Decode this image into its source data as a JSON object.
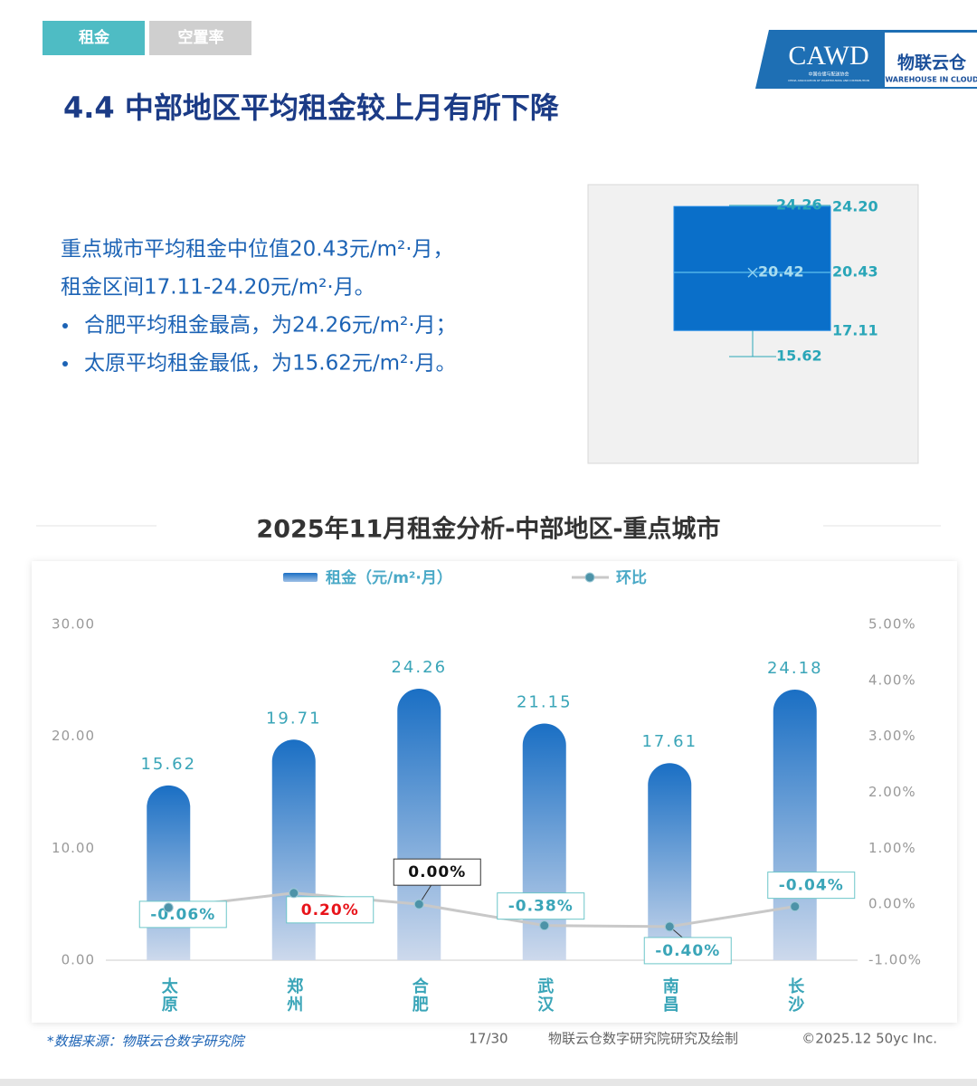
{
  "tabs": [
    "租金",
    "空置率"
  ],
  "logo": {
    "cawd": "CAWD",
    "cawd_sub": "中国仓储与配送协会",
    "cawd_en": "CHINA ASSOCIATION OF WAREHOUSING AND DISTRIBUTION",
    "brand": "物联云仓",
    "brand_en": "WAREHOUSE IN CLOUD"
  },
  "title": "4.4 中部地区平均租金较上月有所下降",
  "summary": [
    "重点城市平均租金中位值20.43元/m²·月，",
    "租金区间17.11-24.20元/m²·月。"
  ],
  "bullets": [
    "合肥平均租金最高，为24.26元/m²·月；",
    "太原平均租金最低，为15.62元/m²·月。"
  ],
  "chart_data": [
    {
      "type": "box",
      "color": "#0a6fc9",
      "values": {
        "min": 15.62,
        "q1": 17.11,
        "median": 20.43,
        "mean": 20.42,
        "q3": 24.2,
        "max": 24.26
      },
      "value_labels": {
        "min": "15.62",
        "q1": "17.11",
        "median": "20.43",
        "mean": "20.42",
        "q3": "24.20",
        "max": "24.26"
      }
    },
    {
      "type": "bar",
      "title": "2025年11月租金分析-中部地区-重点城市",
      "categories": [
        "太原",
        "郑州",
        "合肥",
        "武汉",
        "南昌",
        "长沙"
      ],
      "series": [
        {
          "name": "租金（元/m²·月）",
          "color": "#1a6fc4",
          "values": [
            15.62,
            19.71,
            24.26,
            21.15,
            17.61,
            24.18
          ]
        },
        {
          "name": "环比",
          "type": "line",
          "axis": "y2",
          "color": "#c8c8c8",
          "values": [
            -0.06,
            0.2,
            0,
            -0.38,
            -0.4,
            -0.04
          ],
          "value_labels": [
            "-0.06%",
            "0.20%",
            "0.00%",
            "-0.38%",
            "-0.40%",
            "-0.04%"
          ]
        }
      ],
      "ylim": [
        0,
        30
      ],
      "yticks": [
        {
          "value": 0,
          "label": "0.00"
        },
        {
          "value": 10,
          "label": "10.00"
        },
        {
          "value": 20,
          "label": "20.00"
        },
        {
          "value": 30,
          "label": "30.00"
        }
      ],
      "y2lim": [
        -1,
        5
      ],
      "y2ticks": [
        {
          "value": -1,
          "label": "-1.00%"
        },
        {
          "value": 0,
          "label": "0.00%"
        },
        {
          "value": 1,
          "label": "1.00%"
        },
        {
          "value": 2,
          "label": "2.00%"
        },
        {
          "value": 3,
          "label": "3.00%"
        },
        {
          "value": 4,
          "label": "4.00%"
        },
        {
          "value": 5,
          "label": "5.00%"
        }
      ],
      "legend": "top"
    }
  ],
  "footer": {
    "source": "*数据来源：物联云仓数字研究院",
    "page": "17/30",
    "credit": "物联云仓数字研究院研究及绘制",
    "copyright": "©2025.12 50yc Inc."
  }
}
